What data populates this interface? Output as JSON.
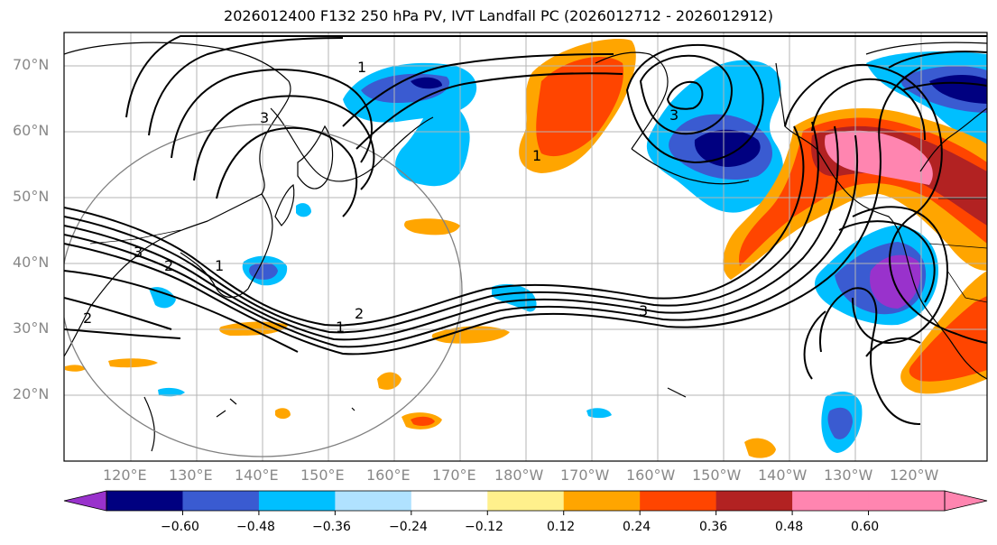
{
  "title": "2026012400 F132 250 hPa PV, IVT Landfall PC (2026012712 - 2026012912)",
  "map": {
    "lat_labels": [
      "70°N",
      "60°N",
      "50°N",
      "40°N",
      "30°N",
      "20°N"
    ],
    "lon_labels": [
      "120°E",
      "130°E",
      "140°E",
      "150°E",
      "160°E",
      "170°E",
      "180°W",
      "170°W",
      "160°W",
      "150°W",
      "140°W",
      "130°W",
      "120°W"
    ],
    "contour_labels": [
      "1",
      "3",
      "2",
      "3",
      "1",
      "2",
      "3",
      "1",
      "3",
      "1",
      "2"
    ],
    "colors": {
      "coast": "#000000",
      "grid": "#b4b4b4",
      "circle": "#808080",
      "contour": "#000000"
    }
  },
  "colorbar": {
    "colors": [
      "#9932cc",
      "#000080",
      "#3a5bd1",
      "#00bfff",
      "#b0e2ff",
      "#ffffff",
      "#fff08c",
      "#ffa500",
      "#ff4500",
      "#b22222",
      "#ff85b0",
      "#ff85b0"
    ],
    "tick_labels": [
      "−0.60",
      "−0.48",
      "−0.36",
      "−0.24",
      "−0.12",
      "0.12",
      "0.24",
      "0.36",
      "0.48",
      "0.60"
    ]
  }
}
